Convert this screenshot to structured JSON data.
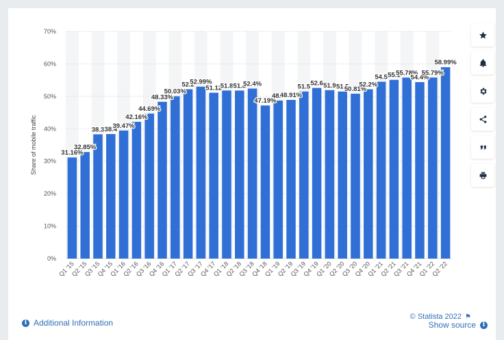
{
  "chart_data": {
    "type": "bar",
    "ylabel": "Share of mobile traffic",
    "xlabel": "",
    "ylim": [
      0,
      70
    ],
    "yticks": [
      "0%",
      "10%",
      "20%",
      "30%",
      "40%",
      "50%",
      "60%",
      "70%"
    ],
    "grid": true,
    "bar_color": "#2f6fd6",
    "categories": [
      "Q1 '15",
      "Q2 '15",
      "Q3 '15",
      "Q4 '15",
      "Q1 '16",
      "Q2 '16",
      "Q3 '16",
      "Q4 '16",
      "Q1 '17",
      "Q2 '17",
      "Q3 '17",
      "Q4 '17",
      "Q1 '18",
      "Q2 '18",
      "Q3 '18",
      "Q4 '18",
      "Q1 '19",
      "Q2 '19",
      "Q3 '19",
      "Q4 '19",
      "Q1 '20",
      "Q2 '20",
      "Q3 '20",
      "Q4 '20",
      "Q1 '21",
      "Q2 '21",
      "Q3 '21",
      "Q4 '21",
      "Q1 '22",
      "Q2 '22"
    ],
    "values": [
      31.16,
      32.85,
      38.3,
      38.4,
      39.47,
      42.16,
      44.69,
      48.33,
      50.03,
      52.2,
      52.99,
      51.12,
      51.8,
      51.8,
      52.4,
      47.19,
      48.7,
      48.91,
      51.5,
      52.6,
      51.9,
      51.5,
      50.81,
      52.2,
      54.5,
      55.1,
      55.78,
      54.4,
      55.79,
      58.99
    ],
    "labels": [
      "31.16%",
      "32.85%",
      "38.3",
      "38.4",
      "39.47%",
      "42.16%",
      "44.69%",
      "48.33%",
      "50.03%",
      "52.2",
      "52.99%",
      "51.12",
      "51.8",
      "51.8",
      "52.4%",
      "47.19%",
      "48.7",
      "48.91%",
      "51.5",
      "52.6",
      "51.9",
      "51.5",
      "50.81%",
      "52.2%",
      "54.5",
      "55.1",
      "55.78%",
      "54.4%",
      "55.79%",
      "58.99%"
    ]
  },
  "toolbar": {
    "icons": [
      "star-icon",
      "bell-icon",
      "gear-icon",
      "share-icon",
      "quote-icon",
      "print-icon"
    ]
  },
  "footer": {
    "additional_info": "Additional Information",
    "copyright": "© Statista 2022",
    "show_source": "Show source"
  }
}
